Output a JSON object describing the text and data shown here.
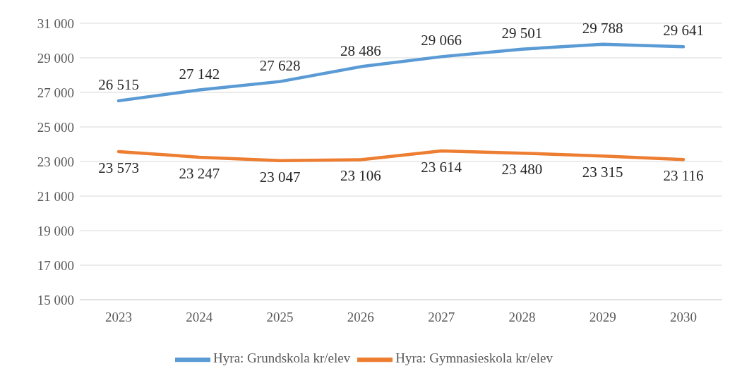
{
  "chart_data": {
    "type": "line",
    "categories": [
      "2023",
      "2024",
      "2025",
      "2026",
      "2027",
      "2028",
      "2029",
      "2030"
    ],
    "series": [
      {
        "name": "Hyra: Grundskola kr/elev",
        "color": "#5b9bd5",
        "values": [
          26515,
          27142,
          27628,
          28486,
          29066,
          29501,
          29788,
          29641
        ],
        "value_labels": [
          "26 515",
          "27 142",
          "27 628",
          "28 486",
          "29 066",
          "29 501",
          "29 788",
          "29 641"
        ]
      },
      {
        "name": "Hyra: Gymnasieskola kr/elev",
        "color": "#ed7d31",
        "values": [
          23573,
          23247,
          23047,
          23106,
          23614,
          23480,
          23315,
          23116
        ],
        "value_labels": [
          "23 573",
          "23 247",
          "23 047",
          "23 106",
          "23 614",
          "23 480",
          "23 315",
          "23 116"
        ]
      }
    ],
    "ylim": [
      15000,
      31000
    ],
    "yticks": [
      {
        "value": 15000,
        "label": "15 000"
      },
      {
        "value": 17000,
        "label": "17 000"
      },
      {
        "value": 19000,
        "label": "19 000"
      },
      {
        "value": 21000,
        "label": "21 000"
      },
      {
        "value": 23000,
        "label": "23 000"
      },
      {
        "value": 25000,
        "label": "25 000"
      },
      {
        "value": 27000,
        "label": "27 000"
      },
      {
        "value": 29000,
        "label": "29 000"
      },
      {
        "value": 31000,
        "label": "31 000"
      }
    ],
    "grid": "y",
    "legend": "bottom",
    "marker": "none",
    "line_style": "solid"
  }
}
